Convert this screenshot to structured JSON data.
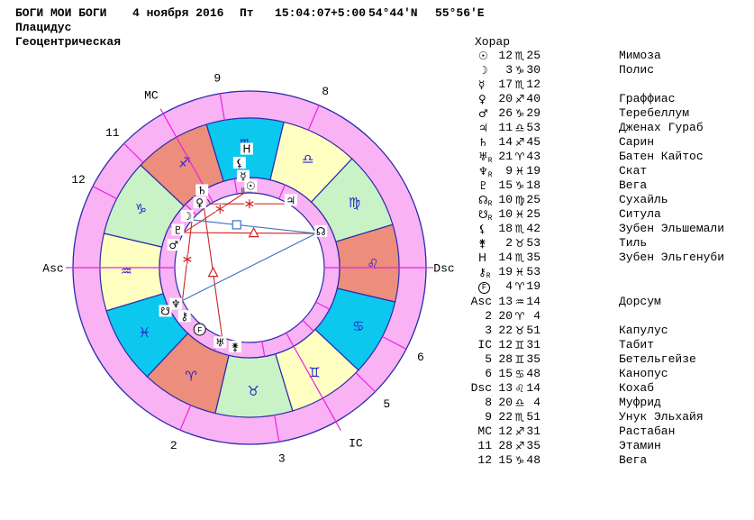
{
  "header": {
    "title": "БОГИ МОИ БОГИ",
    "date": "4 ноября 2016",
    "weekday": "Пт",
    "time": "15:04:07",
    "timezone": "+5:00",
    "latitude": "54°44'N",
    "longitude": "55°56'E",
    "house_system": "Плацидус",
    "coordinate_system": "Геоцентрическая"
  },
  "panel": {
    "title": "Хорар",
    "planets": [
      {
        "id": "sun",
        "glyph": "☉",
        "retro": false,
        "deg": "12",
        "sign": "♏",
        "min": "25",
        "star": "Мимоза"
      },
      {
        "id": "moon",
        "glyph": "☽",
        "retro": false,
        "deg": "3",
        "sign": "♑",
        "min": "30",
        "star": "Полис"
      },
      {
        "id": "mercury",
        "glyph": "☿",
        "retro": false,
        "deg": "17",
        "sign": "♏",
        "min": "12",
        "star": ""
      },
      {
        "id": "venus",
        "glyph": "♀",
        "retro": false,
        "deg": "20",
        "sign": "♐",
        "min": "40",
        "star": "Граффиас"
      },
      {
        "id": "mars",
        "glyph": "♂",
        "retro": false,
        "deg": "26",
        "sign": "♑",
        "min": "29",
        "star": "Теребеллум"
      },
      {
        "id": "jupiter",
        "glyph": "♃",
        "retro": false,
        "deg": "11",
        "sign": "♎",
        "min": "53",
        "star": "Дженах Гураб"
      },
      {
        "id": "saturn",
        "glyph": "♄",
        "retro": false,
        "deg": "14",
        "sign": "♐",
        "min": "45",
        "star": "Сарин"
      },
      {
        "id": "uranus",
        "glyph": "♅",
        "retro": true,
        "deg": "21",
        "sign": "♈",
        "min": "43",
        "star": "Батен Кайтос"
      },
      {
        "id": "neptune",
        "glyph": "♆",
        "retro": true,
        "deg": "9",
        "sign": "♓",
        "min": "19",
        "star": "Скат"
      },
      {
        "id": "pluto",
        "glyph": "♇",
        "retro": false,
        "deg": "15",
        "sign": "♑",
        "min": "18",
        "star": "Вега"
      },
      {
        "id": "north-node",
        "glyph": "☊",
        "retro": true,
        "deg": "10",
        "sign": "♍",
        "min": "25",
        "star": "Сухайль"
      },
      {
        "id": "south-node",
        "glyph": "☋",
        "retro": true,
        "deg": "10",
        "sign": "♓",
        "min": "25",
        "star": "Ситула"
      },
      {
        "id": "lilith",
        "glyph": "⚸",
        "retro": false,
        "deg": "18",
        "sign": "♏",
        "min": "42",
        "star": "Зубен Эльшемали"
      },
      {
        "id": "selena",
        "glyph": "⚵",
        "retro": false,
        "deg": "2",
        "sign": "♉",
        "min": "53",
        "star": "Тиль"
      },
      {
        "id": "proserpina",
        "glyph": "H",
        "retro": false,
        "deg": "14",
        "sign": "♏",
        "min": "35",
        "star": "Зубен Эльгенуби"
      },
      {
        "id": "chiron",
        "glyph": "⚷",
        "retro": true,
        "deg": "19",
        "sign": "♓",
        "min": "53",
        "star": ""
      },
      {
        "id": "fortune",
        "glyph": "F",
        "circled": true,
        "retro": false,
        "deg": "4",
        "sign": "♈",
        "min": "19",
        "star": ""
      }
    ],
    "houses": [
      {
        "label": "Asc",
        "deg": "13",
        "sign": "♒",
        "min": "14",
        "star": "Дорсум"
      },
      {
        "label": "2",
        "deg": "20",
        "sign": "♈",
        "min": "4",
        "star": ""
      },
      {
        "label": "3",
        "deg": "22",
        "sign": "♉",
        "min": "51",
        "star": "Капулус"
      },
      {
        "label": "IC",
        "deg": "12",
        "sign": "♊",
        "min": "31",
        "star": "Табит"
      },
      {
        "label": "5",
        "deg": "28",
        "sign": "♊",
        "min": "35",
        "star": "Бетельгейзе"
      },
      {
        "label": "6",
        "deg": "15",
        "sign": "♋",
        "min": "48",
        "star": "Канопус"
      },
      {
        "label": "Dsc",
        "deg": "13",
        "sign": "♌",
        "min": "14",
        "star": "Кохаб"
      },
      {
        "label": "8",
        "deg": "20",
        "sign": "♎",
        "min": "4",
        "star": "Муфрид"
      },
      {
        "label": "9",
        "deg": "22",
        "sign": "♏",
        "min": "51",
        "star": "Унук Эльхайя"
      },
      {
        "label": "MC",
        "deg": "12",
        "sign": "♐",
        "min": "31",
        "star": "Растабан"
      },
      {
        "label": "11",
        "deg": "28",
        "sign": "♐",
        "min": "35",
        "star": "Этамин"
      },
      {
        "label": "12",
        "deg": "15",
        "sign": "♑",
        "min": "48",
        "star": "Вега"
      }
    ]
  },
  "wheel": {
    "asc_lon": 313.233,
    "signs": [
      {
        "name": "aries",
        "glyph": "♈",
        "element": "fire"
      },
      {
        "name": "taurus",
        "glyph": "♉",
        "element": "earth"
      },
      {
        "name": "gemini",
        "glyph": "♊",
        "element": "air"
      },
      {
        "name": "cancer",
        "glyph": "♋",
        "element": "water"
      },
      {
        "name": "leo",
        "glyph": "♌",
        "element": "fire"
      },
      {
        "name": "virgo",
        "glyph": "♍",
        "element": "earth"
      },
      {
        "name": "libra",
        "glyph": "♎",
        "element": "air"
      },
      {
        "name": "scorpio",
        "glyph": "♏",
        "element": "water"
      },
      {
        "name": "sagittarius",
        "glyph": "♐",
        "element": "fire"
      },
      {
        "name": "capricorn",
        "glyph": "♑",
        "element": "earth"
      },
      {
        "name": "aquarius",
        "glyph": "♒",
        "element": "air"
      },
      {
        "name": "pisces",
        "glyph": "♓",
        "element": "water"
      }
    ],
    "element_colors": {
      "fire": "#ed8d7b",
      "earth": "#c9f2c6",
      "air": "#ffffc2",
      "water": "#0cc7ee"
    },
    "ring_color": "#f9b2f3",
    "border_color": "#2a2aae",
    "cusp_color": "#ef1fe4",
    "sign_glyph_color": "#2525c8",
    "aspect_colors": {
      "red": "#cf2323",
      "blue": "#3b72c0"
    },
    "planets": [
      {
        "id": "sun",
        "glyph": "☉",
        "lon": 222.417,
        "r": 91
      },
      {
        "id": "moon",
        "glyph": "☽",
        "lon": 273.5,
        "r": 90
      },
      {
        "id": "mercury",
        "glyph": "☿",
        "lon": 227.2,
        "r": 102
      },
      {
        "id": "venus",
        "glyph": "♀",
        "lon": 260.667,
        "r": 91
      },
      {
        "id": "mars",
        "glyph": "♂",
        "lon": 296.483,
        "r": 88
      },
      {
        "id": "jupiter",
        "glyph": "♃",
        "lon": 191.883,
        "r": 88
      },
      {
        "id": "saturn",
        "glyph": "♄",
        "lon": 254.75,
        "r": 101
      },
      {
        "id": "uranus",
        "glyph": "♅",
        "lon": 21.717,
        "r": 89
      },
      {
        "id": "neptune",
        "glyph": "♆",
        "lon": 339.317,
        "r": 91
      },
      {
        "id": "pluto",
        "glyph": "♇",
        "lon": 285.3,
        "r": 90
      },
      {
        "id": "north-node",
        "glyph": "☊",
        "lon": 160.417,
        "r": 89
      },
      {
        "id": "south-node",
        "glyph": "☋",
        "lon": 340.417,
        "r": 105
      },
      {
        "id": "lilith",
        "glyph": "⚸",
        "lon": 228.7,
        "r": 117
      },
      {
        "id": "selena",
        "glyph": "⚵",
        "lon": 32.883,
        "r": 89
      },
      {
        "id": "proserpina",
        "glyph": "H",
        "lon": 224.583,
        "r": 132
      },
      {
        "id": "chiron",
        "glyph": "⚷",
        "lon": 349.883,
        "r": 90
      },
      {
        "id": "fortune",
        "glyph": "F",
        "circled": true,
        "lon": 4.317,
        "r": 88
      }
    ],
    "cusps": [
      {
        "label": "Asc",
        "lon": 313.233,
        "axis": "asc"
      },
      {
        "label": "2",
        "lon": 20.067
      },
      {
        "label": "3",
        "lon": 52.85
      },
      {
        "label": "IC",
        "lon": 72.517,
        "axis": "ic"
      },
      {
        "label": "5",
        "lon": 88.583
      },
      {
        "label": "6",
        "lon": 105.8
      },
      {
        "label": "Dsc",
        "lon": 133.233,
        "axis": "dsc"
      },
      {
        "label": "8",
        "lon": 200.067
      },
      {
        "label": "9",
        "lon": 232.85
      },
      {
        "label": "MC",
        "lon": 252.517,
        "axis": "mc"
      },
      {
        "label": "11",
        "lon": 268.583
      },
      {
        "label": "12",
        "lon": 285.8
      }
    ],
    "aspects": [
      {
        "a": "jupiter",
        "b": "saturn",
        "kind": "sextile",
        "color": "red",
        "t": 0.5
      },
      {
        "a": "mercury",
        "b": "pluto",
        "kind": "sextile",
        "color": "red",
        "t": 0.4
      },
      {
        "a": "moon",
        "b": "neptune",
        "kind": "sextile",
        "color": "red",
        "t": 0.49
      },
      {
        "a": "pluto",
        "b": "north-node",
        "kind": "trine",
        "color": "red",
        "t": 0.53
      },
      {
        "a": "venus",
        "b": "uranus",
        "kind": "trine",
        "color": "red",
        "t": 0.5
      },
      {
        "a": "moon",
        "b": "north-node",
        "kind": "square",
        "color": "blue",
        "t": 0.36
      },
      {
        "a": "neptune",
        "b": "north-node",
        "kind": "opposition",
        "color": "blue",
        "t": -1
      }
    ]
  }
}
